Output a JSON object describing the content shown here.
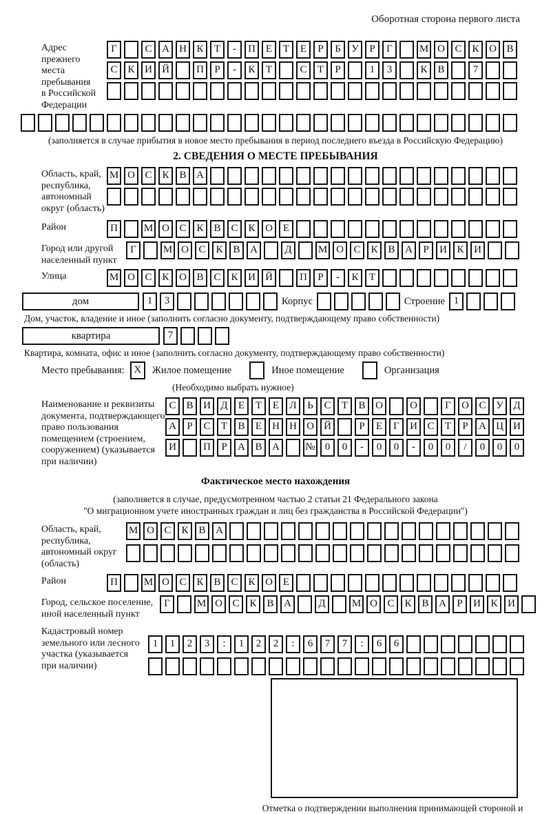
{
  "page": {
    "header_note": "Оборотная сторона первого листа"
  },
  "prev_address": {
    "label": "Адрес прежнего\nместа пребывания\nв Российской\nФедерации",
    "rows": [
      {
        "cells": "Г САНКТ-ПЕТЕРБУРГ МОСКОВ",
        "len": 24
      },
      {
        "cells": "СКИЙ ПР-КТ СТР 13 КВ 7",
        "len": 24
      },
      {
        "cells": "",
        "len": 24
      },
      {
        "cells": "",
        "len": 29
      }
    ],
    "note": "(заполняется в случае прибытия в новое место пребывания в период последнего въезда в Российскую Федерацию)"
  },
  "section2": {
    "title": "2. СВЕДЕНИЯ О МЕСТЕ ПРЕБЫВАНИЯ",
    "region": {
      "label": "Область, край,\nреспублика,\nавтономный\nокруг (область)",
      "rows": [
        {
          "cells": "МОСКВА",
          "len": 24
        },
        {
          "cells": "",
          "len": 24
        }
      ]
    },
    "district": {
      "label": "Район",
      "row": {
        "cells": "П МОСКВСКОЕ",
        "len": 24
      }
    },
    "city": {
      "label": "Город или другой\nнаселенный пункт",
      "row": {
        "cells": "Г МОСКВА Д МОСКВАРИКИ",
        "len": 23
      }
    },
    "street": {
      "label": "Улица",
      "row": {
        "cells": "МОСКОВСКИЙ ПР-КТ",
        "len": 24
      }
    },
    "house": {
      "type_label": "дом",
      "number": {
        "cells": "13",
        "len": 8
      },
      "korpus_label": "Корпус",
      "korpus": {
        "cells": "",
        "len": 5
      },
      "stroenie_label": "Строение",
      "stroenie": {
        "cells": "1",
        "len": 4
      },
      "note": "Дом, участок, владение и иное (заполнить согласно документу, подтверждающему право собственности)"
    },
    "apartment": {
      "type_label": "квартира",
      "number": {
        "cells": "7",
        "len": 4
      },
      "note": "Квартира, комната, офис и иное (заполнить согласно документу, подтверждающему право собственности)"
    },
    "stay_type": {
      "label": "Место пребывания:",
      "options": [
        {
          "label": "Жилое помещение",
          "mark": "X"
        },
        {
          "label": "Иное помещение",
          "mark": ""
        },
        {
          "label": "Организация",
          "mark": ""
        }
      ],
      "note": "(Необходимо выбрать нужное)"
    },
    "document": {
      "label": "Наименование и реквизиты\nдокумента, подтверждающего\nправо пользования\nпомещением (строением,\nсооружением) (указывается\nпри наличии)",
      "rows": [
        {
          "cells": "СВИДЕТЕЛЬСТВО О ГОСУД",
          "len": 21
        },
        {
          "cells": "АРСТВЕННОЙ РЕГИСТРАЦИ",
          "len": 21
        },
        {
          "cells": "И ПРАВА №00-00-00/000",
          "len": 21
        }
      ]
    }
  },
  "actual_location": {
    "title": "Фактическое место нахождения",
    "note1": "(заполняется в случае, предусмотренном частью 2 статьи 21 Федерального закона",
    "note2": "\"О миграционном учете иностранных граждан и лиц без гражданства в Российской Федерации\")",
    "region": {
      "label": "Область, край,\nреспублика,\nавтономный округ\n(область)",
      "rows": [
        {
          "cells": "МОСКВА",
          "len": 23
        },
        {
          "cells": "",
          "len": 23
        }
      ]
    },
    "district": {
      "label": "Район",
      "row": {
        "cells": "П МОСКВСКОЕ",
        "len": 24
      }
    },
    "city": {
      "label": "Город, сельское поселение,\nиной населенный пункт",
      "row": {
        "cells": "Г МОСКВА Д МОСКВАРИКИ",
        "len": 22
      }
    },
    "cadastre": {
      "label": "Кадастровый номер\nземельного или лесного\nучастка (указывается\nпри наличии)",
      "rows": [
        {
          "cells": "1123:122:677:66",
          "len": 22
        },
        {
          "cells": "",
          "len": 22
        }
      ]
    }
  },
  "stamp": {
    "caption": "Отметка о подтверждении выполнения принимающей стороной и иностранным гражданином или лицом без гражданства действий, необходимых для его постановки на учет по месту пребывания"
  }
}
